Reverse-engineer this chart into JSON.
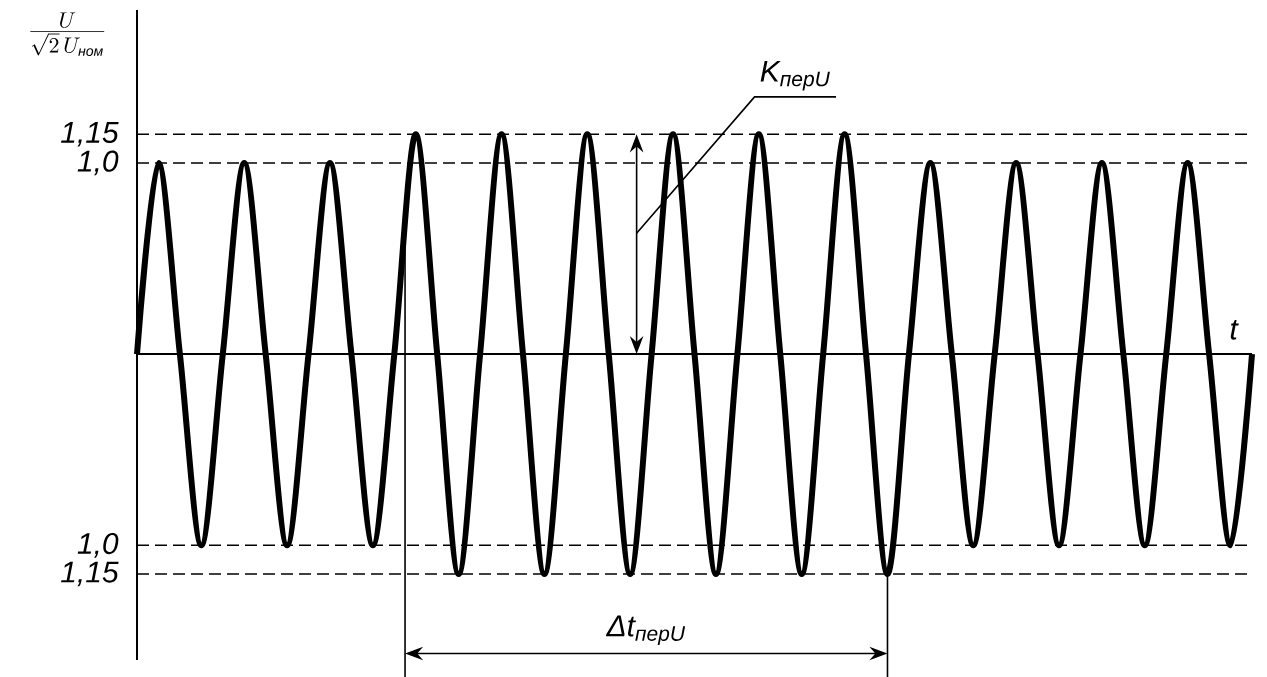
{
  "chart_data": {
    "type": "line",
    "ylabel": "\\frac{U}{\\sqrt{2}\\,U_{\\mbox{\\itshape\\scriptsize ном}}}",
    "xlabel": "t",
    "categories": [
      null,
      null,
      null,
      null,
      null,
      null,
      null,
      null,
      null,
      null,
      null,
      null,
      null,
      null,
      null,
      null,
      null,
      null,
      null,
      null,
      null,
      null,
      null,
      null,
      null,
      null,
      null,
      null,
      null,
      null,
      null,
      null,
      null,
      null,
      null,
      null,
      null,
      null,
      null,
      null,
      null,
      null,
      null,
      null,
      null,
      null,
      null,
      null,
      null,
      null,
      null,
      null,
      null
    ],
    "values": [
      0,
      1,
      0,
      -1,
      0,
      1,
      0,
      -1,
      0,
      1,
      0,
      -1,
      0,
      1.15,
      0,
      -1.15,
      0,
      1.15,
      0,
      -1.15,
      0,
      1.15,
      0,
      -1.15,
      0,
      1.15,
      0,
      -1.15,
      0,
      1.15,
      0,
      -1.15,
      0,
      1.15,
      0,
      -1.15,
      0,
      1,
      0,
      -1,
      0,
      1,
      0,
      -1,
      0,
      1,
      0,
      -1,
      0,
      1,
      0,
      -1,
      0
    ],
    "color": "#000000",
    "ylim": [
      -1.6,
      1.8
    ],
    "yticks": [
      {
        "value": -1.15,
        "label": "1,15"
      },
      {
        "value": -1,
        "label": "1,0"
      },
      {
        "value": 1,
        "label": "1,0"
      },
      {
        "value": 1.15,
        "label": "1,15"
      }
    ],
    "ref_lines": [
      {
        "axis": "y",
        "value": 1.15,
        "line_style": "dashed"
      },
      {
        "axis": "y",
        "value": 1,
        "line_style": "dashed"
      },
      {
        "axis": "y",
        "value": -1,
        "line_style": "dashed"
      },
      {
        "axis": "y",
        "value": -1.15,
        "line_style": "dashed"
      }
    ],
    "annotations": [
      {
        "text": "K$_{перU}$",
        "y": 1.15
      },
      "Δt$_{перU}$"
    ]
  }
}
